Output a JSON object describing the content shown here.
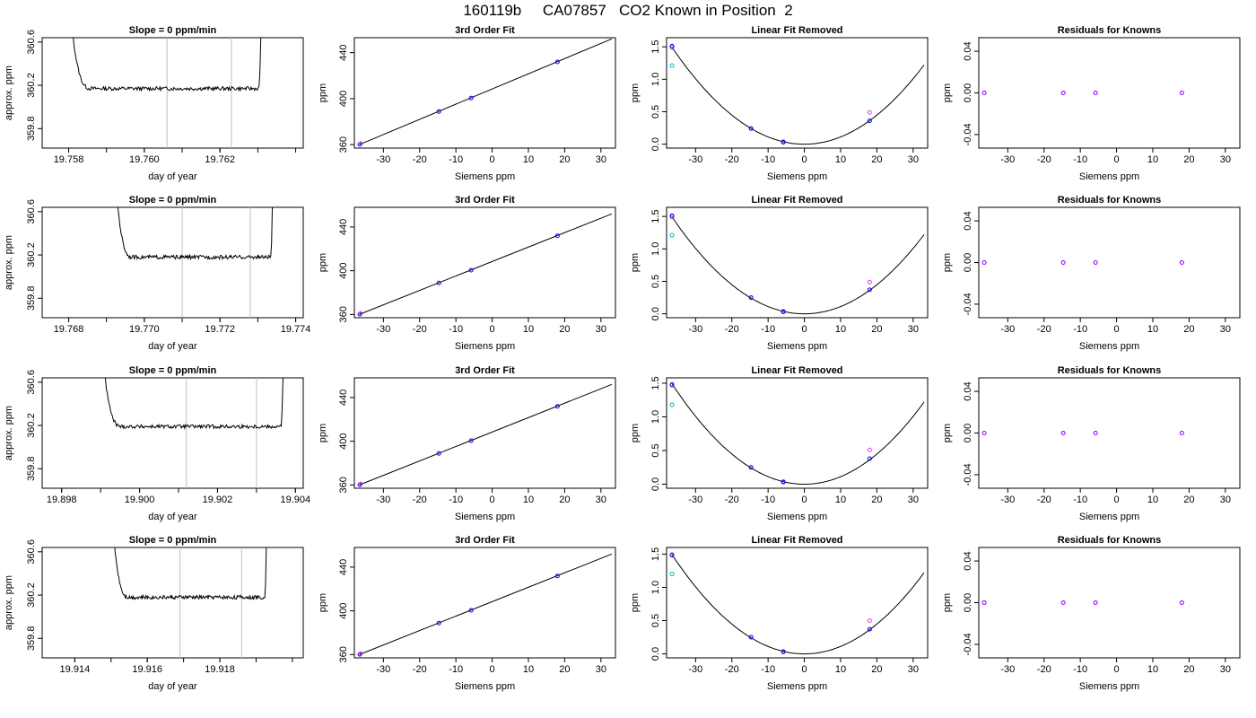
{
  "page": {
    "title": "160119b     CA07857   CO2 Known in Position  2"
  },
  "chart_data": [
    {
      "panel": "trace",
      "row": 1,
      "type": "line",
      "title": "Slope =  0  ppm/min",
      "xlabel": "day of year",
      "ylabel": "approx. ppm",
      "xlim": [
        19.7573,
        19.7642
      ],
      "ylim": [
        359.62,
        360.64
      ],
      "xticks": [
        19.758,
        19.76,
        19.762
      ],
      "xtick_labels": [
        "19.758",
        "19.760",
        "19.762"
      ],
      "yticks": [
        359.8,
        360.2,
        360.6
      ],
      "ytick_labels": [
        "359.8",
        "360.2",
        "360.6"
      ],
      "vlines": [
        19.7606,
        19.7623
      ],
      "level": 360.17,
      "x_start": 19.758,
      "x_end": 19.7631,
      "color": "#000000"
    },
    {
      "panel": "fit",
      "row": 1,
      "type": "scatter",
      "title": "3rd Order Fit",
      "xlabel": "Siemens ppm",
      "ylabel": "ppm",
      "xlim": [
        -38,
        34
      ],
      "ylim": [
        357,
        453
      ],
      "xticks": [
        -30,
        -20,
        -10,
        0,
        10,
        20,
        30
      ],
      "yticks": [
        360,
        400,
        440
      ],
      "line": {
        "x": [
          -36.5,
          33
        ],
        "y": [
          360.2,
          452
        ]
      },
      "points": {
        "x": [
          -36.5,
          -14.7,
          -5.8,
          18.0
        ],
        "y": [
          360.2,
          388.8,
          400.5,
          431.9
        ]
      }
    },
    {
      "panel": "linrem",
      "row": 1,
      "type": "scatter",
      "title": "Linear Fit Removed",
      "xlabel": "Siemens ppm",
      "ylabel": "ppm",
      "xlim": [
        -38,
        34
      ],
      "ylim": [
        -0.06,
        1.64
      ],
      "xticks": [
        -30,
        -20,
        -10,
        0,
        10,
        20,
        30
      ],
      "yticks": [
        0.0,
        0.5,
        1.0,
        1.5
      ],
      "ytick_labels": [
        "0.0",
        "0.5",
        "1.0",
        "1.5"
      ],
      "curve_a": 0.00112,
      "points": {
        "x": [
          -36.5,
          -14.7,
          -5.8,
          18.0
        ],
        "y": [
          1.51,
          0.24,
          0.03,
          0.36
        ]
      },
      "magenta": {
        "x": [
          -36.5,
          -14.7,
          -5.8,
          18.0
        ],
        "y": [
          1.49,
          0.24,
          0.04,
          0.49
        ]
      },
      "cyan": {
        "x": [
          -36.5
        ],
        "y": [
          1.21
        ]
      }
    },
    {
      "panel": "resid",
      "row": 1,
      "type": "scatter",
      "title": "Residuals for Knowns",
      "xlabel": "Siemens ppm",
      "ylabel": "ppm",
      "xlim": [
        -38,
        34
      ],
      "ylim": [
        -0.053,
        0.053
      ],
      "xticks": [
        -30,
        -20,
        -10,
        0,
        10,
        20,
        30
      ],
      "yticks": [
        -0.04,
        0.0,
        0.04
      ],
      "ytick_labels": [
        "-0.04",
        "0.00",
        "0.04"
      ],
      "points": {
        "x": [
          -36.5,
          -14.7,
          -5.8,
          18.0
        ],
        "y": [
          0,
          0,
          0,
          0
        ]
      }
    },
    {
      "panel": "trace",
      "row": 2,
      "type": "line",
      "title": "Slope =  0  ppm/min",
      "xlabel": "day of year",
      "ylabel": "approx. ppm",
      "xlim": [
        19.7673,
        19.7742
      ],
      "ylim": [
        359.62,
        360.64
      ],
      "xticks": [
        19.768,
        19.77,
        19.772,
        19.774
      ],
      "xtick_labels": [
        "19.768",
        "19.770",
        "19.772",
        "19.774"
      ],
      "yticks": [
        359.8,
        360.2,
        360.6
      ],
      "ytick_labels": [
        "359.8",
        "360.2",
        "360.6"
      ],
      "vlines": [
        19.771,
        19.7728
      ],
      "level": 360.18,
      "x_start": 19.7692,
      "x_end": 19.7734,
      "color": "#000000"
    },
    {
      "panel": "fit",
      "row": 2,
      "type": "scatter",
      "title": "3rd Order Fit",
      "xlabel": "Siemens ppm",
      "ylabel": "ppm",
      "xlim": [
        -38,
        34
      ],
      "ylim": [
        357,
        458
      ],
      "xticks": [
        -30,
        -20,
        -10,
        0,
        10,
        20,
        30
      ],
      "yticks": [
        360,
        400,
        440
      ],
      "line": {
        "x": [
          -36.5,
          33
        ],
        "y": [
          360.2,
          452
        ]
      },
      "points": {
        "x": [
          -36.5,
          -14.7,
          -5.8,
          18.0
        ],
        "y": [
          360.2,
          388.8,
          400.5,
          431.9
        ]
      }
    },
    {
      "panel": "linrem",
      "row": 2,
      "type": "scatter",
      "title": "Linear Fit Removed",
      "xlabel": "Siemens ppm",
      "ylabel": "ppm",
      "xlim": [
        -38,
        34
      ],
      "ylim": [
        -0.06,
        1.64
      ],
      "xticks": [
        -30,
        -20,
        -10,
        0,
        10,
        20,
        30
      ],
      "yticks": [
        0.0,
        0.5,
        1.0,
        1.5
      ],
      "ytick_labels": [
        "0.0",
        "0.5",
        "1.0",
        "1.5"
      ],
      "curve_a": 0.00112,
      "points": {
        "x": [
          -36.5,
          -14.7,
          -5.8,
          18.0
        ],
        "y": [
          1.51,
          0.25,
          0.03,
          0.37
        ]
      },
      "magenta": {
        "x": [
          -36.5,
          -14.7,
          -5.8,
          18.0
        ],
        "y": [
          1.49,
          0.25,
          0.04,
          0.49
        ]
      },
      "cyan": {
        "x": [
          -36.5
        ],
        "y": [
          1.21
        ]
      }
    },
    {
      "panel": "resid",
      "row": 2,
      "type": "scatter",
      "title": "Residuals for Knowns",
      "xlabel": "Siemens ppm",
      "ylabel": "ppm",
      "xlim": [
        -38,
        34
      ],
      "ylim": [
        -0.053,
        0.053
      ],
      "xticks": [
        -30,
        -20,
        -10,
        0,
        10,
        20,
        30
      ],
      "yticks": [
        -0.04,
        0.0,
        0.04
      ],
      "ytick_labels": [
        "-0.04",
        "0.00",
        "0.04"
      ],
      "points": {
        "x": [
          -36.5,
          -14.7,
          -5.8,
          18.0
        ],
        "y": [
          0,
          0,
          0,
          0
        ]
      }
    },
    {
      "panel": "trace",
      "row": 3,
      "type": "line",
      "title": "Slope =  0  ppm/min",
      "xlabel": "day of year",
      "ylabel": "approx. ppm",
      "xlim": [
        19.8975,
        19.9042
      ],
      "ylim": [
        359.62,
        360.64
      ],
      "xticks": [
        19.898,
        19.9,
        19.902,
        19.904
      ],
      "xtick_labels": [
        "19.898",
        "19.900",
        "19.902",
        "19.904"
      ],
      "yticks": [
        359.8,
        360.2,
        360.6
      ],
      "ytick_labels": [
        "359.8",
        "360.2",
        "360.6"
      ],
      "vlines": [
        19.9012,
        19.903
      ],
      "level": 360.19,
      "x_start": 19.899,
      "x_end": 19.9037,
      "color": "#000000"
    },
    {
      "panel": "fit",
      "row": 3,
      "type": "scatter",
      "title": "3rd Order Fit",
      "xlabel": "Siemens ppm",
      "ylabel": "ppm",
      "xlim": [
        -38,
        34
      ],
      "ylim": [
        357,
        458
      ],
      "xticks": [
        -30,
        -20,
        -10,
        0,
        10,
        20,
        30
      ],
      "yticks": [
        360,
        400,
        440
      ],
      "line": {
        "x": [
          -36.5,
          33
        ],
        "y": [
          360.2,
          452
        ]
      },
      "points": {
        "x": [
          -36.5,
          -14.7,
          -5.8,
          18.0
        ],
        "y": [
          360.2,
          388.8,
          400.5,
          431.9
        ]
      }
    },
    {
      "panel": "linrem",
      "row": 3,
      "type": "scatter",
      "title": "Linear Fit Removed",
      "xlabel": "Siemens ppm",
      "ylabel": "ppm",
      "xlim": [
        -38,
        34
      ],
      "ylim": [
        -0.06,
        1.58
      ],
      "xticks": [
        -30,
        -20,
        -10,
        0,
        10,
        20,
        30
      ],
      "yticks": [
        0.0,
        0.5,
        1.0,
        1.5
      ],
      "ytick_labels": [
        "0.0",
        "0.5",
        "1.0",
        "1.5"
      ],
      "curve_a": 0.00112,
      "points": {
        "x": [
          -36.5,
          -14.7,
          -5.8,
          18.0
        ],
        "y": [
          1.48,
          0.25,
          0.03,
          0.38
        ]
      },
      "magenta": {
        "x": [
          -36.5,
          -14.7,
          -5.8,
          18.0
        ],
        "y": [
          1.47,
          0.25,
          0.04,
          0.51
        ]
      },
      "cyan": {
        "x": [
          -36.5
        ],
        "y": [
          1.18
        ]
      }
    },
    {
      "panel": "resid",
      "row": 3,
      "type": "scatter",
      "title": "Residuals for Knowns",
      "xlabel": "Siemens ppm",
      "ylabel": "ppm",
      "xlim": [
        -38,
        34
      ],
      "ylim": [
        -0.053,
        0.053
      ],
      "xticks": [
        -30,
        -20,
        -10,
        0,
        10,
        20,
        30
      ],
      "yticks": [
        -0.04,
        0.0,
        0.04
      ],
      "ytick_labels": [
        "-0.04",
        "0.00",
        "0.04"
      ],
      "points": {
        "x": [
          -36.5,
          -14.7,
          -5.8,
          18.0
        ],
        "y": [
          0,
          0,
          0,
          0
        ]
      }
    },
    {
      "panel": "trace",
      "row": 4,
      "type": "line",
      "title": "Slope =  0  ppm/min",
      "xlabel": "day of year",
      "ylabel": "approx. ppm",
      "xlim": [
        19.9131,
        19.9203
      ],
      "ylim": [
        359.62,
        360.64
      ],
      "xticks": [
        19.914,
        19.916,
        19.918
      ],
      "xtick_labels": [
        "19.914",
        "19.916",
        "19.918"
      ],
      "yticks": [
        359.8,
        360.2,
        360.6
      ],
      "ytick_labels": [
        "359.8",
        "360.2",
        "360.6"
      ],
      "vlines": [
        19.9169,
        19.9186
      ],
      "level": 360.18,
      "x_start": 19.915,
      "x_end": 19.9193,
      "color": "#000000"
    },
    {
      "panel": "fit",
      "row": 4,
      "type": "scatter",
      "title": "3rd Order Fit",
      "xlabel": "Siemens ppm",
      "ylabel": "ppm",
      "xlim": [
        -38,
        34
      ],
      "ylim": [
        357,
        458
      ],
      "xticks": [
        -30,
        -20,
        -10,
        0,
        10,
        20,
        30
      ],
      "yticks": [
        360,
        400,
        440
      ],
      "line": {
        "x": [
          -36.5,
          33
        ],
        "y": [
          360.2,
          452
        ]
      },
      "points": {
        "x": [
          -36.5,
          -14.7,
          -5.8,
          18.0
        ],
        "y": [
          360.2,
          388.8,
          400.5,
          431.9
        ]
      }
    },
    {
      "panel": "linrem",
      "row": 4,
      "type": "scatter",
      "title": "Linear Fit Removed",
      "xlabel": "Siemens ppm",
      "ylabel": "ppm",
      "xlim": [
        -38,
        34
      ],
      "ylim": [
        -0.06,
        1.6
      ],
      "xticks": [
        -30,
        -20,
        -10,
        0,
        10,
        20,
        30
      ],
      "yticks": [
        0.0,
        0.5,
        1.0,
        1.5
      ],
      "ytick_labels": [
        "0.0",
        "0.5",
        "1.0",
        "1.5"
      ],
      "curve_a": 0.00112,
      "points": {
        "x": [
          -36.5,
          -14.7,
          -5.8,
          18.0
        ],
        "y": [
          1.49,
          0.25,
          0.03,
          0.37
        ]
      },
      "magenta": {
        "x": [
          -36.5,
          -14.7,
          -5.8,
          18.0
        ],
        "y": [
          1.48,
          0.25,
          0.04,
          0.5
        ]
      },
      "cyan": {
        "x": [
          -36.5
        ],
        "y": [
          1.2
        ]
      }
    },
    {
      "panel": "resid",
      "row": 4,
      "type": "scatter",
      "title": "Residuals for Knowns",
      "xlabel": "Siemens ppm",
      "ylabel": "ppm",
      "xlim": [
        -38,
        34
      ],
      "ylim": [
        -0.053,
        0.053
      ],
      "xticks": [
        -30,
        -20,
        -10,
        0,
        10,
        20,
        30
      ],
      "yticks": [
        -0.04,
        0.0,
        0.04
      ],
      "ytick_labels": [
        "-0.04",
        "0.00",
        "0.04"
      ],
      "points": {
        "x": [
          -36.5,
          -14.7,
          -5.8,
          18.0
        ],
        "y": [
          0,
          0,
          0,
          0
        ]
      }
    }
  ],
  "colors": {
    "axis": "#000000",
    "vline": "#c0c0c0",
    "point_blue": "#0000ff",
    "point_magenta": "#e040e0",
    "point_cyan": "#00b0d0",
    "resid_point": "#8000ff",
    "trace_line": "#000000"
  }
}
